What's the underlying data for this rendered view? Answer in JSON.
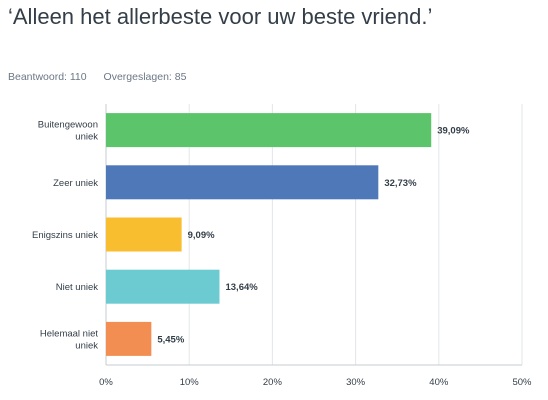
{
  "title": "‘Alleen het allerbeste voor uw beste vriend.’",
  "stats": {
    "answered": "Beantwoord: 110",
    "skipped": "Overgeslagen: 85"
  },
  "chart_data": {
    "type": "bar",
    "orientation": "horizontal",
    "categories": [
      [
        "Buitengewoon",
        "uniek"
      ],
      [
        "Zeer uniek"
      ],
      [
        "Enigszins uniek"
      ],
      [
        "Niet uniek"
      ],
      [
        "Helemaal niet",
        "uniek"
      ]
    ],
    "values": [
      39.09,
      32.73,
      9.09,
      13.64,
      5.45
    ],
    "value_labels": [
      "39,09%",
      "32,73%",
      "9,09%",
      "13,64%",
      "5,45%"
    ],
    "colors": [
      "#5cc46b",
      "#4f78b8",
      "#f9be2f",
      "#6ccbd1",
      "#f28e52"
    ],
    "xlim": [
      0,
      50
    ],
    "ticks": [
      0,
      10,
      20,
      30,
      40,
      50
    ],
    "tick_labels": [
      "0%",
      "10%",
      "20%",
      "30%",
      "40%",
      "50%"
    ],
    "grid": true
  }
}
